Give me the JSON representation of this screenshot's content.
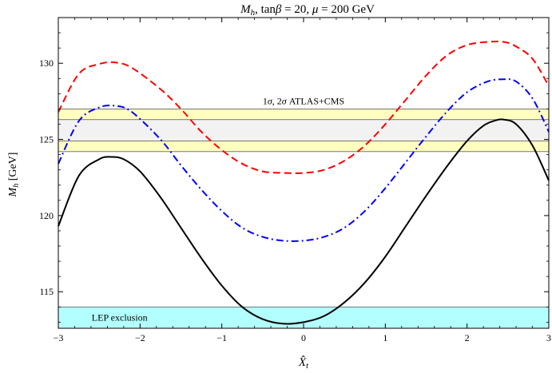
{
  "chart_data": {
    "type": "line",
    "title": "M_h, tanβ = 20, μ = 200 GeV",
    "xlabel": "X̂_t",
    "ylabel": "M_h [GeV]",
    "xlim": [
      -3,
      3
    ],
    "ylim": [
      112.6,
      133.0
    ],
    "x_ticks": [
      -3,
      -2,
      -1,
      0,
      1,
      2,
      3
    ],
    "x_tick_labels": [
      "−3",
      "−2",
      "−1",
      "0",
      "1",
      "2",
      "3"
    ],
    "y_ticks": [
      115,
      120,
      125,
      130
    ],
    "y_tick_labels": [
      "115",
      "120",
      "125",
      "130"
    ],
    "grid": false,
    "bands": [
      {
        "label": "",
        "ymin": 124.2,
        "ymax": 127.0,
        "color": "#ffffc0"
      },
      {
        "label": "1σ, 2σ ATLAS+CMS",
        "ymin": 124.9,
        "ymax": 126.3,
        "color": "#f2f2f2"
      },
      {
        "label": "LEP exclusion",
        "ymin": 112.6,
        "ymax": 114.0,
        "color": "#b3ffff"
      }
    ],
    "series": [
      {
        "color": "#000000",
        "dash": "solid",
        "x": [
          -3.0,
          -2.75,
          -2.5,
          -2.35,
          -2.2,
          -2.0,
          -1.75,
          -1.5,
          -1.25,
          -1.0,
          -0.75,
          -0.5,
          -0.25,
          0.0,
          0.25,
          0.5,
          0.75,
          1.0,
          1.25,
          1.5,
          1.75,
          2.0,
          2.2,
          2.35,
          2.45,
          2.6,
          2.8,
          3.0
        ],
        "y": [
          119.3,
          122.6,
          123.7,
          123.85,
          123.7,
          122.9,
          121.2,
          119.2,
          117.2,
          115.4,
          114.0,
          113.2,
          112.9,
          113.0,
          113.4,
          114.3,
          115.6,
          117.3,
          119.3,
          121.3,
          123.2,
          124.9,
          125.9,
          126.25,
          126.3,
          126.0,
          124.6,
          122.3
        ]
      },
      {
        "color": "#0000ff",
        "dash": "dashdot",
        "x": [
          -3.0,
          -2.75,
          -2.5,
          -2.3,
          -2.1,
          -1.75,
          -1.5,
          -1.25,
          -1.0,
          -0.75,
          -0.5,
          -0.25,
          0.0,
          0.25,
          0.5,
          0.75,
          1.0,
          1.25,
          1.5,
          1.75,
          2.0,
          2.25,
          2.45,
          2.6,
          2.8,
          3.0
        ],
        "y": [
          123.4,
          126.2,
          127.1,
          127.2,
          126.8,
          125.0,
          123.3,
          121.7,
          120.3,
          119.2,
          118.6,
          118.35,
          118.35,
          118.6,
          119.2,
          120.3,
          121.8,
          123.5,
          125.2,
          126.8,
          128.1,
          128.8,
          128.95,
          128.8,
          127.7,
          125.5
        ]
      },
      {
        "color": "#ff0000",
        "dash": "dashed",
        "x": [
          -3.0,
          -2.75,
          -2.5,
          -2.3,
          -2.1,
          -1.75,
          -1.5,
          -1.25,
          -1.0,
          -0.75,
          -0.5,
          -0.25,
          0.0,
          0.25,
          0.5,
          0.75,
          1.0,
          1.25,
          1.5,
          1.75,
          2.0,
          2.25,
          2.45,
          2.6,
          2.8,
          3.0
        ],
        "y": [
          126.8,
          129.3,
          129.95,
          130.05,
          129.7,
          128.3,
          127.0,
          125.5,
          124.3,
          123.4,
          122.9,
          122.8,
          122.8,
          123.0,
          123.6,
          124.6,
          126.0,
          127.6,
          129.2,
          130.5,
          131.2,
          131.4,
          131.4,
          131.1,
          130.3,
          128.5
        ]
      }
    ]
  }
}
